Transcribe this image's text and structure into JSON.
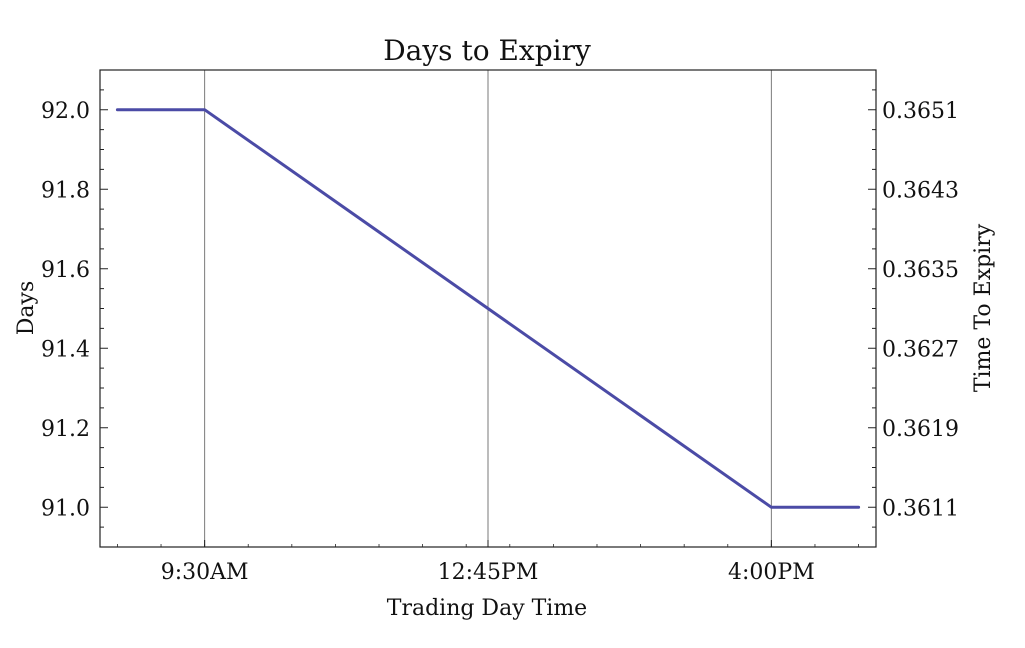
{
  "chart_data": {
    "type": "line",
    "title": "Days to Expiry",
    "xlabel": "Trading Day Time",
    "ylabel": "Days",
    "y2label": "Time To Expiry",
    "x_ticks": [
      "9:30AM",
      "12:45PM",
      "4:00PM"
    ],
    "x_tick_values": [
      9.5,
      12.75,
      16.0
    ],
    "xlim": [
      8.3,
      17.2
    ],
    "ylim": [
      90.9,
      92.1
    ],
    "y_ticks": [
      "92.0",
      "91.8",
      "91.6",
      "91.4",
      "91.2",
      "91.0"
    ],
    "y_tick_values": [
      92.0,
      91.8,
      91.6,
      91.4,
      91.2,
      91.0
    ],
    "y2_ticks": [
      "0.3651",
      "0.3643",
      "0.3635",
      "0.3627",
      "0.3619",
      "0.3611"
    ],
    "y2_tick_values": [
      92.0,
      91.8,
      91.6,
      91.4,
      91.2,
      91.0
    ],
    "vertical_gridlines_at": [
      9.5,
      12.75,
      16.0
    ],
    "series": [
      {
        "color": "#4b4ba6",
        "x": [
          8.5,
          9.5,
          16.0,
          17.0
        ],
        "y": [
          92.0,
          92.0,
          91.0,
          91.0
        ]
      }
    ]
  }
}
